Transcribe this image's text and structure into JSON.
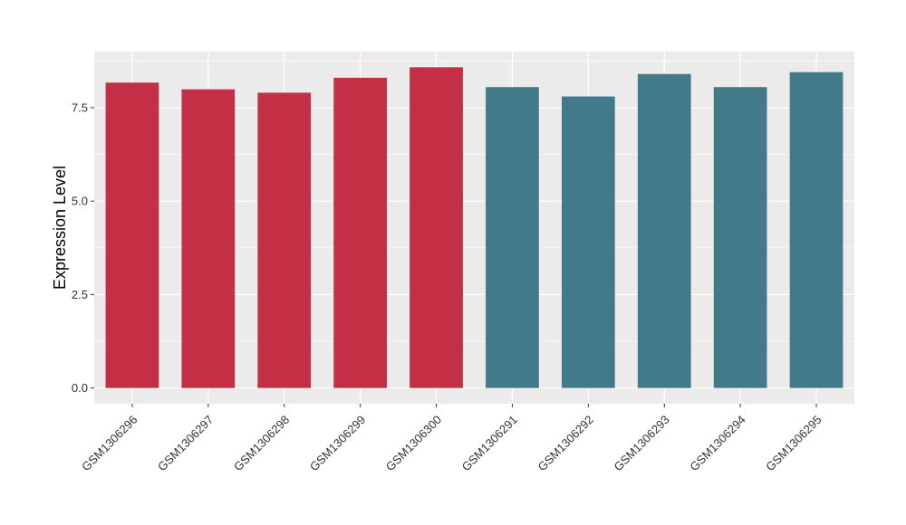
{
  "chart_data": {
    "type": "bar",
    "title": "",
    "xlabel": "",
    "ylabel": "Expression Level",
    "categories": [
      "GSM1306296",
      "GSM1306297",
      "GSM1306298",
      "GSM1306299",
      "GSM1306300",
      "GSM1306291",
      "GSM1306292",
      "GSM1306293",
      "GSM1306294",
      "GSM1306295"
    ],
    "values": [
      8.17,
      7.99,
      7.9,
      8.3,
      8.58,
      8.05,
      7.8,
      8.4,
      8.05,
      8.45
    ],
    "bar_colors": [
      "#c33046",
      "#c33046",
      "#c33046",
      "#c33046",
      "#c33046",
      "#437a8a",
      "#437a8a",
      "#437a8a",
      "#437a8a",
      "#437a8a"
    ],
    "ylim": [
      -0.42,
      9.0
    ],
    "y_ticks": [
      0.0,
      2.5,
      5.0,
      7.5
    ],
    "y_tick_labels": [
      "0.0",
      "2.5",
      "5.0",
      "7.5"
    ],
    "grid": true,
    "legend": "none",
    "panel_background": "#ebebeb",
    "grid_color": "#ffffff"
  }
}
